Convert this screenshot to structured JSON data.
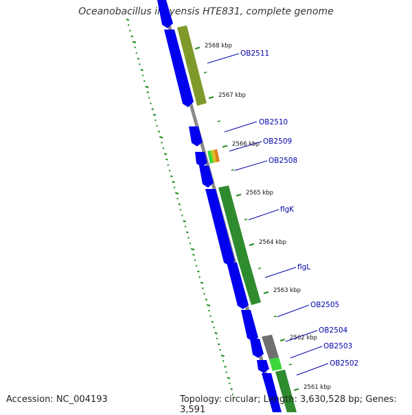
{
  "header": {
    "title": "Oceanobacillus iheyensis HTE831, complete genome"
  },
  "footer": {
    "accession": "Accession: NC_004193",
    "summary": "Topology: circular; Length: 3,630,528 bp; Genes: 3,591"
  },
  "ticks": [
    {
      "label": "2568 kbp"
    },
    {
      "label": "2567 kbp"
    },
    {
      "label": "2566 kbp"
    },
    {
      "label": "2565 kbp"
    },
    {
      "label": "2564 kbp"
    },
    {
      "label": "2563 kbp"
    },
    {
      "label": "2562 kbp"
    },
    {
      "label": "2561 kbp"
    }
  ],
  "genes": [
    {
      "label": "OB2511"
    },
    {
      "label": "OB2510"
    },
    {
      "label": "OB2509"
    },
    {
      "label": "OB2508"
    },
    {
      "label": "flgK"
    },
    {
      "label": "flgL"
    },
    {
      "label": "OB2505"
    },
    {
      "label": "OB2504"
    },
    {
      "label": "OB2503"
    },
    {
      "label": "OB2502"
    }
  ],
  "colors": {
    "backbone": "#8a8a8a",
    "cds_arrow": "#0000ee",
    "feature_olive": "#7f9a2a",
    "feature_green": "#2e8b2e",
    "feature_lightgreen": "#3bd63b",
    "feature_gray": "#707070",
    "label_blue": "#0000aa",
    "tick_green": "#228b22",
    "gc_dots": "#1f8f1f"
  }
}
